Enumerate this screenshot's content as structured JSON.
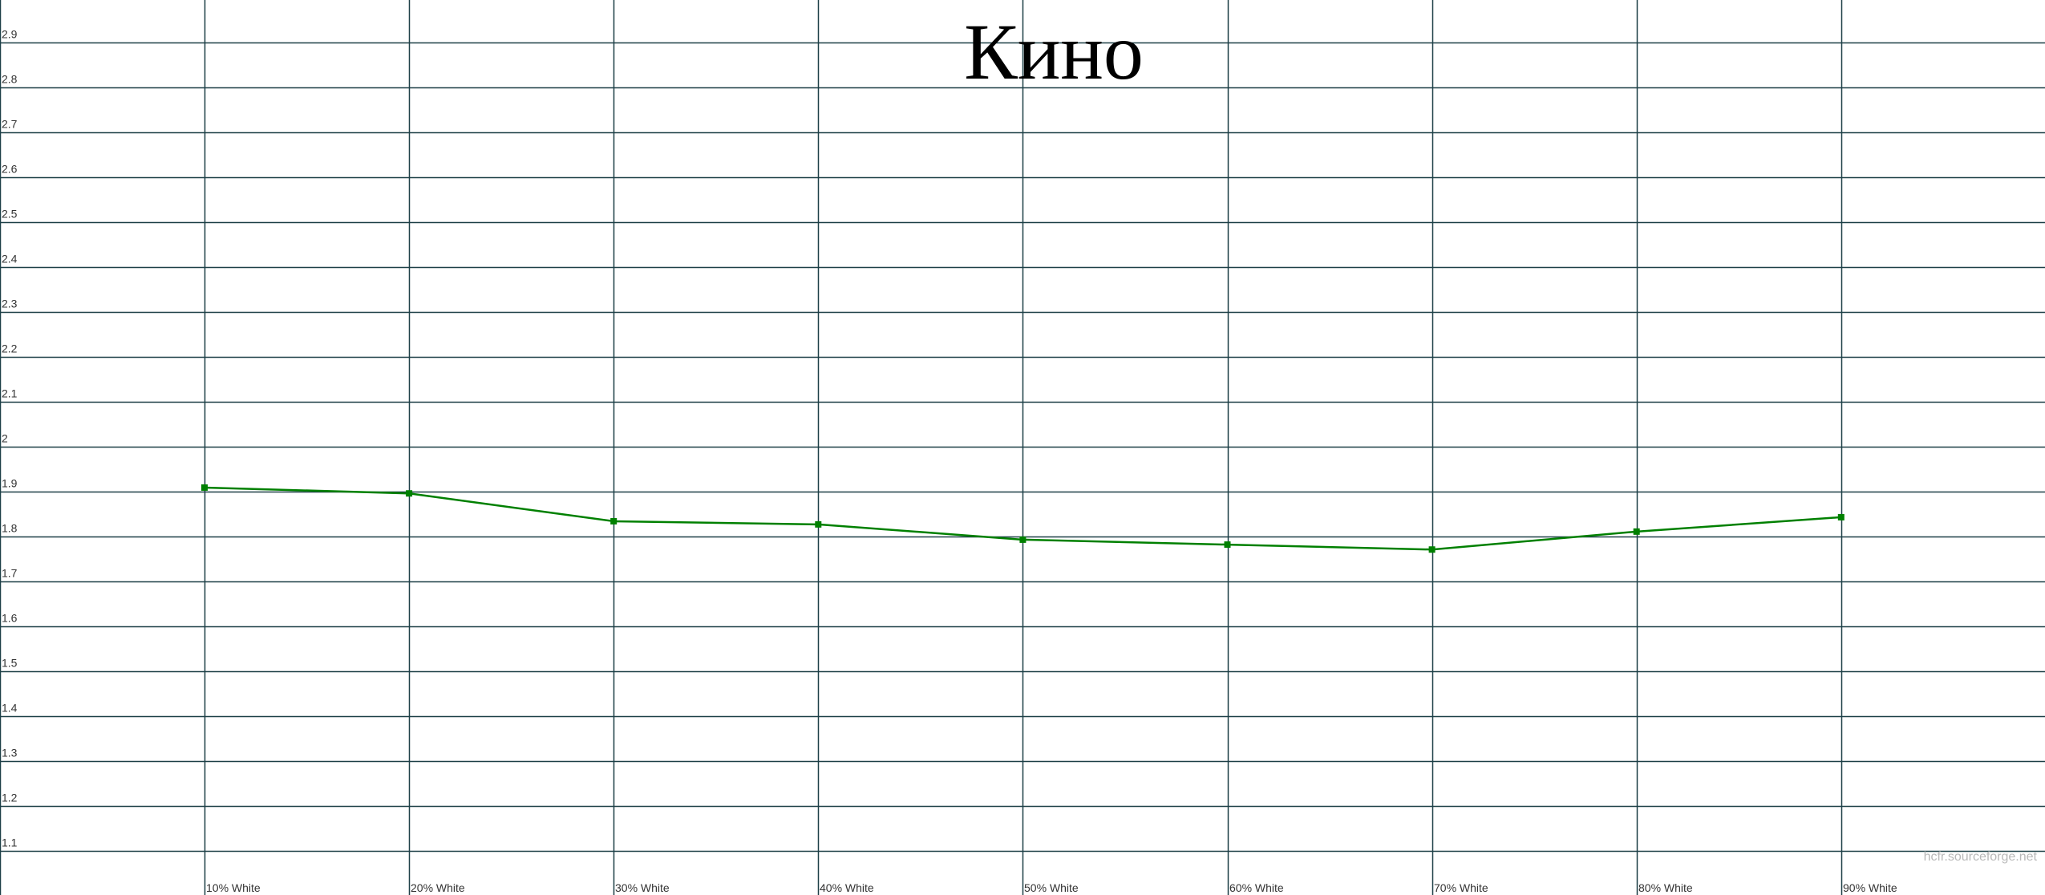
{
  "chart_data": {
    "type": "line",
    "title": "Кино",
    "categories": [
      "10% White",
      "20% White",
      "30% White",
      "40% White",
      "50% White",
      "60% White",
      "70% White",
      "80% White",
      "90% White"
    ],
    "series": [
      {
        "values": [
          1.909,
          1.896,
          1.834,
          1.827,
          1.793,
          1.782,
          1.771,
          1.811,
          1.843
        ],
        "color": "#008000"
      }
    ],
    "y_ticks": [
      "1.1",
      "1.2",
      "1.3",
      "1.4",
      "1.5",
      "1.6",
      "1.7",
      "1.8",
      "1.9",
      "2",
      "2.1",
      "2.2",
      "2.3",
      "2.4",
      "2.5",
      "2.6",
      "2.7",
      "2.8",
      "2.9"
    ],
    "ylim": [
      1.0,
      3.0
    ],
    "grid": true,
    "grid_color": "#1c3f46",
    "watermark": "hcfr.sourceforge.net"
  }
}
